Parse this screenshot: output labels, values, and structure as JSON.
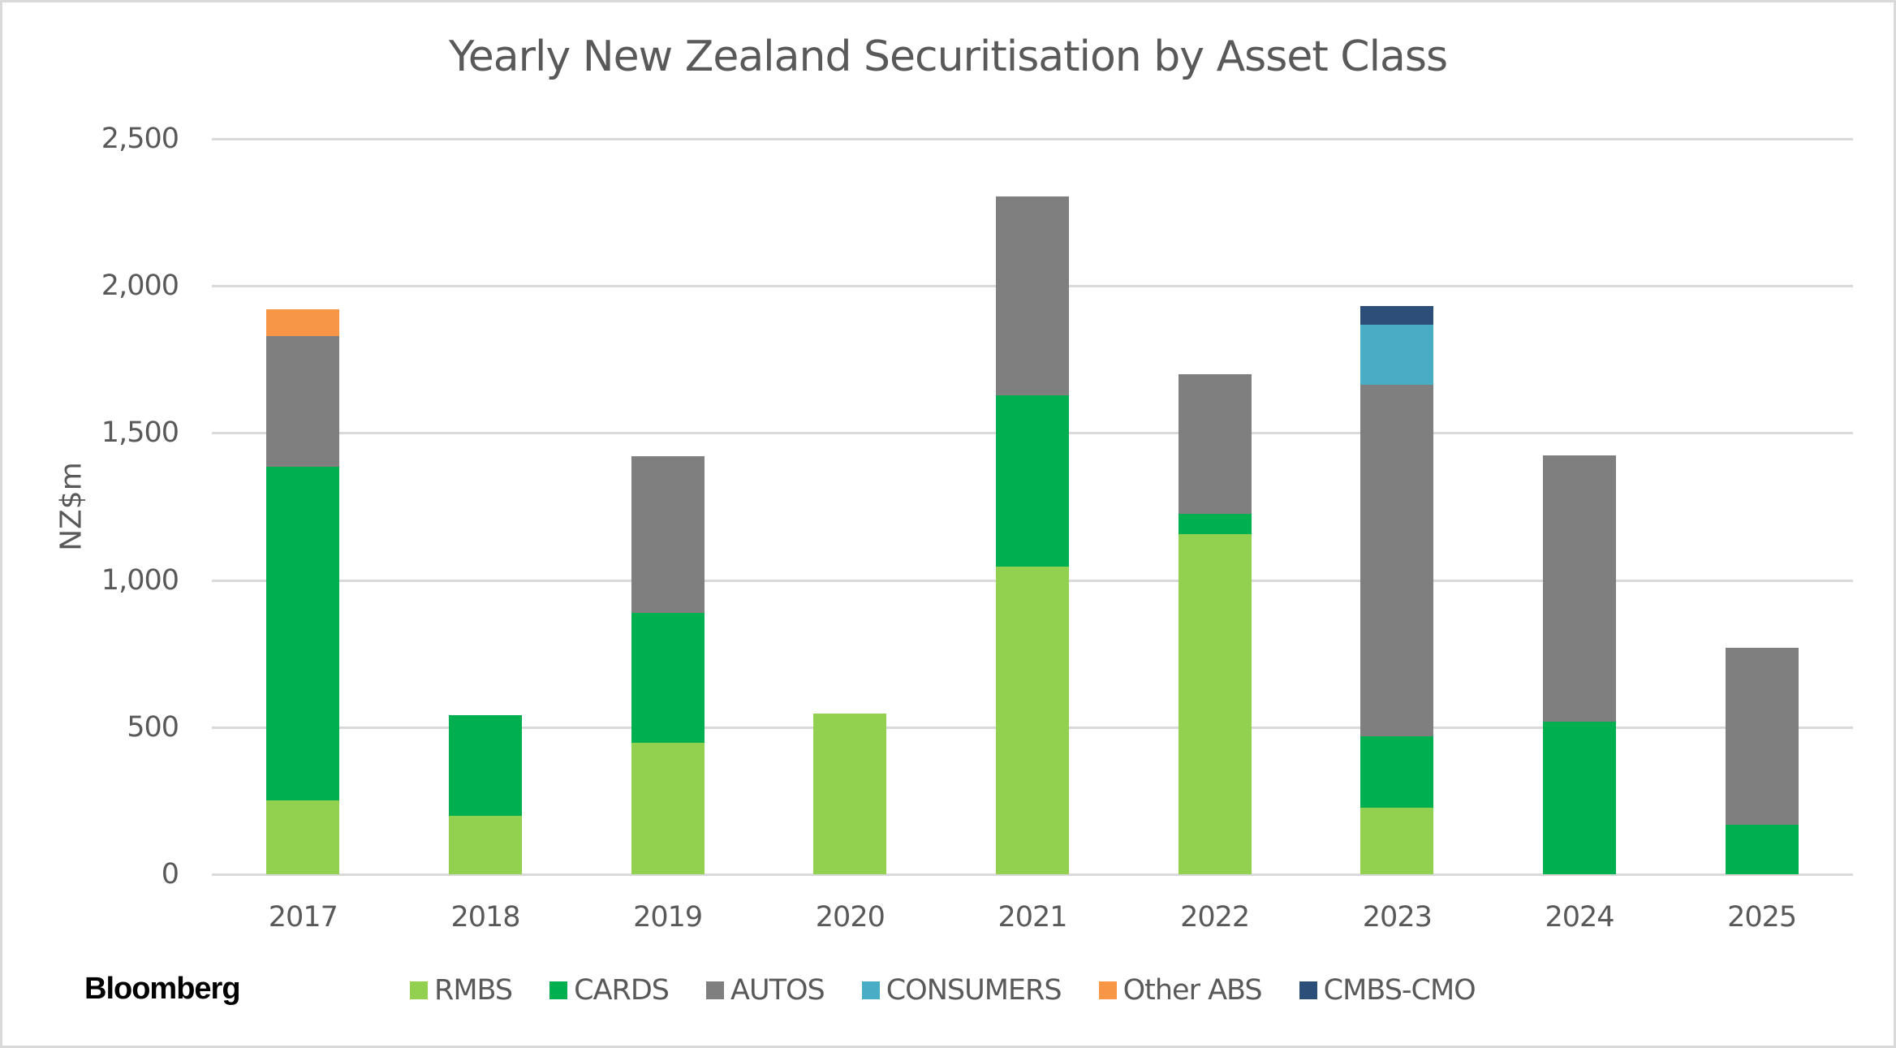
{
  "chart_data": {
    "type": "bar",
    "stacked": true,
    "title": "Yearly New Zealand Securitisation by Asset Class",
    "xlabel": "",
    "ylabel": "NZ$m",
    "ylim": [
      0,
      2500
    ],
    "yticks": [
      0,
      500,
      1000,
      1500,
      2000,
      2500
    ],
    "ytick_labels": [
      "0",
      "500",
      "1,000",
      "1,500",
      "2,000",
      "2,500"
    ],
    "grid": true,
    "legend_position": "bottom",
    "categories": [
      "2017",
      "2018",
      "2019",
      "2020",
      "2021",
      "2022",
      "2023",
      "2024",
      "2025"
    ],
    "series": [
      {
        "name": "RMBS",
        "color": "#92d050",
        "values": [
          250,
          200,
          446,
          546,
          1047,
          1155,
          225,
          0,
          0
        ]
      },
      {
        "name": "CARDS",
        "color": "#00b050",
        "values": [
          1135,
          342,
          443,
          0,
          580,
          70,
          243,
          519,
          167
        ]
      },
      {
        "name": "AUTOS",
        "color": "#7f7f7f",
        "values": [
          445,
          0,
          532,
          0,
          677,
          474,
          1196,
          905,
          602
        ]
      },
      {
        "name": "CONSUMERS",
        "color": "#4bacc6",
        "values": [
          0,
          0,
          0,
          0,
          0,
          0,
          203,
          0,
          0
        ]
      },
      {
        "name": "Other ABS",
        "color": "#f79646",
        "values": [
          90,
          0,
          0,
          0,
          0,
          0,
          0,
          0,
          0
        ]
      },
      {
        "name": "CMBS-CMO",
        "color": "#2e4e7a",
        "values": [
          0,
          0,
          0,
          0,
          0,
          0,
          64,
          0,
          0
        ]
      }
    ]
  },
  "branding": {
    "logo_text": "Bloomberg"
  }
}
